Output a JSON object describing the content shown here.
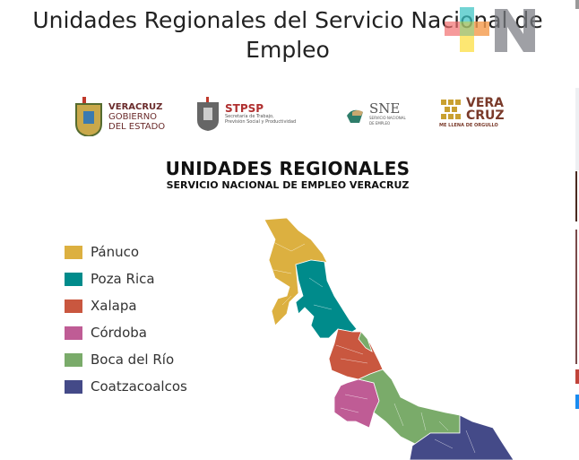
{
  "article": {
    "title_line1": "Unidades Regionales del Servicio Nacional de",
    "title_line2": "Empleo"
  },
  "watermark": {
    "letter": "N",
    "colors": [
      "#f26b6b",
      "#3cc4c4",
      "#9acd6a",
      "#f5a64a",
      "#fde047",
      "#7a7d82"
    ]
  },
  "logos": [
    {
      "line1": "VERACRUZ",
      "line2": "GOBIERNO",
      "line3": "DEL ESTADO"
    },
    {
      "title": "STPSP",
      "sub1": "Secretaría de Trabajo,",
      "sub2": "Previsión Social y Productividad"
    },
    {
      "title": "SNE",
      "sub1": "SERVICIO NACIONAL",
      "sub2": "DE EMPLEO"
    },
    {
      "line1": "VERA",
      "line2": "CRUZ",
      "tag": "ME LLENA DE ORGULLO"
    }
  ],
  "infographic": {
    "heading": "UNIDADES REGIONALES",
    "subheading": "SERVICIO NACIONAL DE EMPLEO VERACRUZ",
    "legend": [
      {
        "label": "Pánuco",
        "color": "#dcb040"
      },
      {
        "label": "Poza Rica",
        "color": "#008b8b"
      },
      {
        "label": "Xalapa",
        "color": "#c9573f"
      },
      {
        "label": "Córdoba",
        "color": "#bf5c95"
      },
      {
        "label": "Boca del Río",
        "color": "#7aab6a"
      },
      {
        "label": "Coatzacoalcos",
        "color": "#444a88"
      }
    ]
  }
}
